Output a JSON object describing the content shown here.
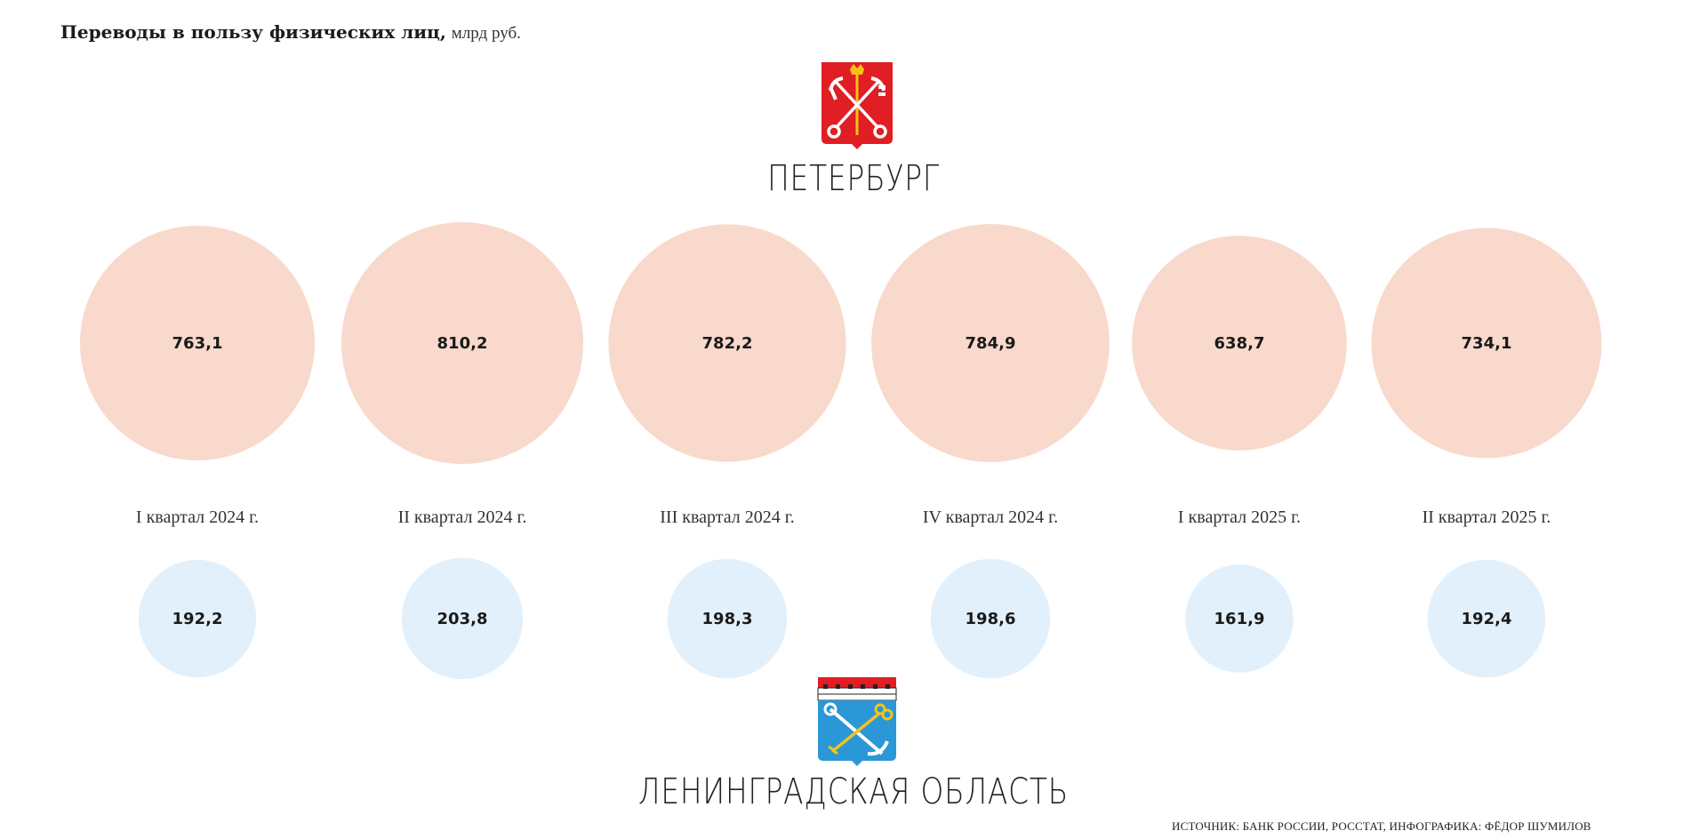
{
  "title": {
    "bold": "Переводы в пользу физических лиц,",
    "unit": "млрд руб."
  },
  "source": "ИСТОЧНИК: БАНК РОССИИ, РОССТАТ, ИНФОГРАФИКА: ФЁДОР ШУМИЛОВ",
  "colors": {
    "spb": "#f9d9cc",
    "lo": "#e2f0fb",
    "spb_coat": "#e01e24",
    "lo_coat": "#2b97d6"
  },
  "chart_data": {
    "type": "bubble",
    "categories": [
      "I квартал 2024 г.",
      "II квартал 2024 г.",
      "III квартал 2024 г.",
      "IV квартал 2024 г.",
      "I квартал 2025 г.",
      "II квартал 2025 г."
    ],
    "series": [
      {
        "name": "ПЕТЕРБУРГ",
        "values": [
          763.1,
          810.2,
          782.2,
          784.9,
          638.7,
          734.1
        ],
        "labels": [
          "763,1",
          "810,2",
          "782,2",
          "784,9",
          "638,7",
          "734,1"
        ],
        "color": "#f9d9cc"
      },
      {
        "name": "ЛЕНИНГРАДСКАЯ ОБЛАСТЬ",
        "values": [
          192.2,
          203.8,
          198.3,
          198.6,
          161.9,
          192.4
        ],
        "labels": [
          "192,2",
          "203,8",
          "198,3",
          "198,6",
          "161,9",
          "192,4"
        ],
        "color": "#e2f0fb"
      }
    ]
  }
}
